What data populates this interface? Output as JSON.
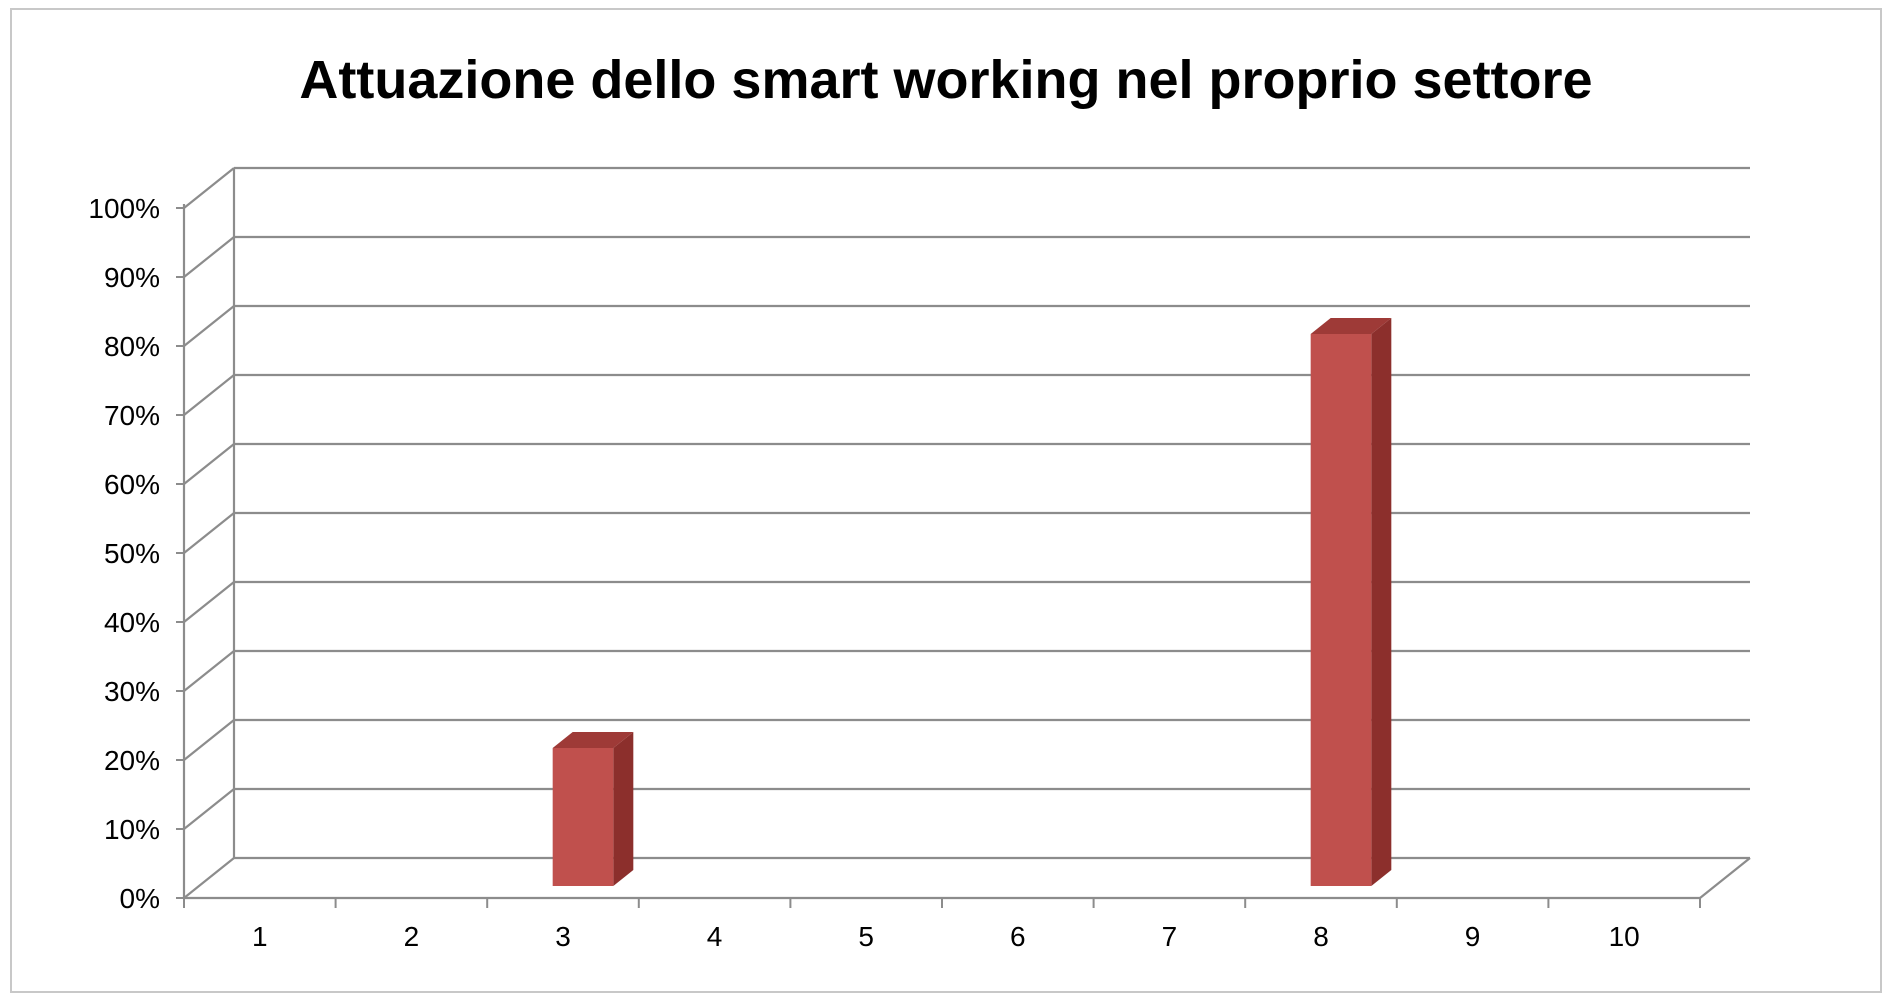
{
  "chart_data": {
    "type": "bar",
    "title": "Attuazione dello smart working nel proprio settore",
    "xlabel": "",
    "ylabel": "",
    "categories": [
      "1",
      "2",
      "3",
      "4",
      "5",
      "6",
      "7",
      "8",
      "9",
      "10"
    ],
    "series": [
      {
        "values": [
          0,
          0,
          20,
          0,
          0,
          0,
          0,
          80,
          0,
          0
        ]
      }
    ],
    "ylim": [
      0,
      100
    ],
    "y_ticks": [
      "0%",
      "10%",
      "20%",
      "30%",
      "40%",
      "50%",
      "60%",
      "70%",
      "80%",
      "90%",
      "100%"
    ],
    "grid": true,
    "legend": "none",
    "style": "3d-clustered-column"
  },
  "colors": {
    "bar_front": "#c0504d",
    "bar_side": "#8c2f2c",
    "bar_top": "#9e3a37",
    "grid": "#8c8c8c",
    "text": "#000000"
  }
}
